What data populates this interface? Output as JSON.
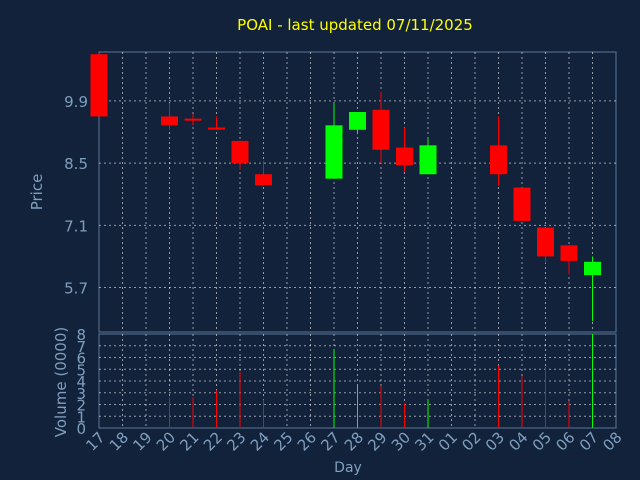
{
  "chart_data": {
    "type": "candlestick",
    "title": "POAI - last updated 07/11/2025",
    "ylabel": "Price",
    "xlabel": "Day",
    "volume_label": "Volume (0000)",
    "ylim": [
      4.7,
      11.0
    ],
    "yticks": [
      "9.9",
      "8.5",
      "7.1",
      "5.7"
    ],
    "vol_ylim": [
      0,
      8
    ],
    "vol_yticks": [
      "0",
      "1",
      "2",
      "3",
      "4",
      "5",
      "6",
      "7",
      "8"
    ],
    "grid": true,
    "colors": {
      "background": "#12223a",
      "title": "#ffff00",
      "label": "#7f9fbf",
      "grid": "#ffffff",
      "up": "#00ff00",
      "down": "#ff0000"
    },
    "days": [
      "17",
      "18",
      "19",
      "20",
      "21",
      "22",
      "23",
      "24",
      "25",
      "26",
      "27",
      "28",
      "29",
      "30",
      "31",
      "01",
      "02",
      "03",
      "04",
      "05",
      "06",
      "07",
      "08"
    ],
    "candles": [
      {
        "day": "17",
        "open": 10.95,
        "high": 10.95,
        "low": 9.55,
        "close": 9.55,
        "volume": null
      },
      {
        "day": "20",
        "open": 9.55,
        "high": 9.85,
        "low": 9.25,
        "close": 9.35,
        "volume": 2.6
      },
      {
        "day": "21",
        "open": 9.5,
        "high": 9.6,
        "low": 9.35,
        "close": 9.46,
        "volume": 2.6
      },
      {
        "day": "22",
        "open": 9.3,
        "high": 9.55,
        "low": 9.25,
        "close": 9.27,
        "volume": 3.2
      },
      {
        "day": "23",
        "open": 9.0,
        "high": 9.0,
        "low": 8.35,
        "close": 8.5,
        "volume": 4.8
      },
      {
        "day": "24",
        "open": 8.25,
        "high": 8.55,
        "low": 8.0,
        "close": 8.0,
        "volume": 2.4
      },
      {
        "day": "27",
        "open": 8.15,
        "high": 9.85,
        "low": 8.15,
        "close": 9.35,
        "volume": 6.7
      },
      {
        "day": "28",
        "open": 9.25,
        "high": 9.65,
        "low": 9.15,
        "close": 9.65,
        "volume": 3.6
      },
      {
        "day": "29",
        "open": 9.7,
        "high": 10.1,
        "low": 8.5,
        "close": 8.8,
        "volume": 3.6
      },
      {
        "day": "30",
        "open": 8.85,
        "high": 9.3,
        "low": 8.3,
        "close": 8.45,
        "volume": 2.1
      },
      {
        "day": "31",
        "open": 8.25,
        "high": 9.05,
        "low": 8.25,
        "close": 8.9,
        "volume": 2.4
      },
      {
        "day": "03",
        "open": 8.9,
        "high": 9.55,
        "low": 8.0,
        "close": 8.25,
        "volume": 5.3
      },
      {
        "day": "04",
        "open": 7.95,
        "high": 7.95,
        "low": 7.2,
        "close": 7.2,
        "volume": 4.4
      },
      {
        "day": "05",
        "open": 7.05,
        "high": 7.05,
        "low": 6.25,
        "close": 6.4,
        "volume": 5.2
      },
      {
        "day": "06",
        "open": 6.65,
        "high": 6.65,
        "low": 6.0,
        "close": 6.3,
        "volume": 2.3
      },
      {
        "day": "07",
        "open": 5.98,
        "high": 6.4,
        "low": 4.95,
        "close": 6.28,
        "volume": 8.0
      }
    ]
  }
}
